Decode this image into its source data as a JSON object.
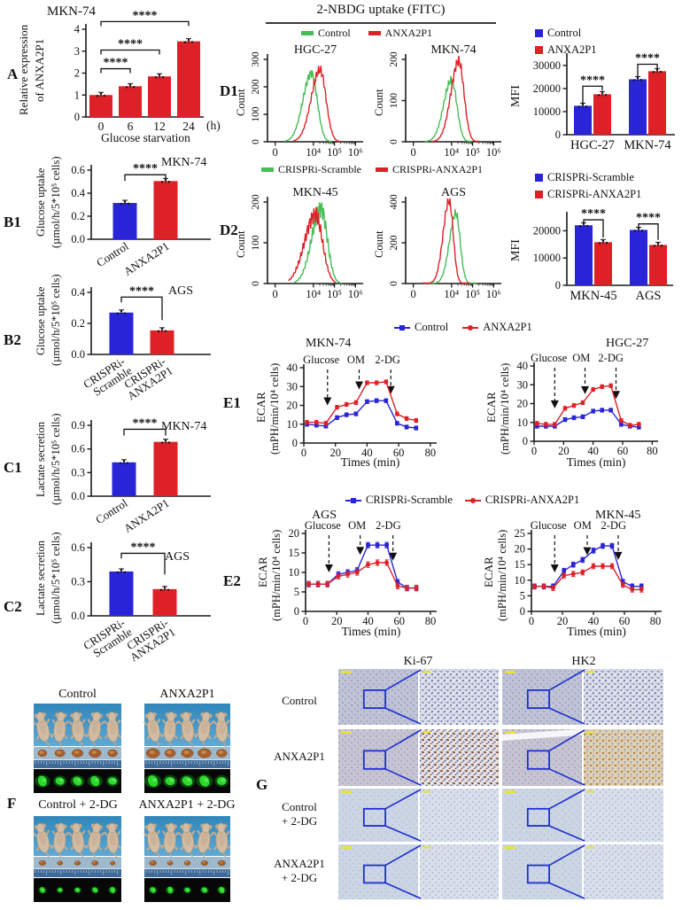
{
  "colors": {
    "red": "#dd2127",
    "blue": "#2a24d8",
    "green": "#46bd55",
    "axis": "#1a1a1a",
    "inset_blue": "#1d2fd0",
    "scalebar": "#e8e238",
    "mice_bg_top": "#2f86ba",
    "mice_bg_bottom": "#5fa9d4",
    "mouse_body": "#d2bca3",
    "tumor_bg": "#9db9cb",
    "ruler": "#3e6a98",
    "tumor": "#a95e2b",
    "tumor_hi": "#cd8a4e",
    "fluoro_bg": "#070707",
    "fluoro": "#2bd82b",
    "fluoro_glow": "#0f7a14"
  },
  "panel_labels": {
    "A": "A",
    "B1": "B1",
    "B2": "B2",
    "C1": "C1",
    "C2": "C2",
    "D1": "D1",
    "D2": "D2",
    "E1": "E1",
    "E2": "E2",
    "F": "F",
    "G": "G"
  },
  "d1_header": {
    "title": "2-NBDG uptake (FITC)"
  },
  "legends": {
    "d1": [
      {
        "label": "Control",
        "color": "green"
      },
      {
        "label": "ANXA2P1",
        "color": "red"
      }
    ],
    "d2": [
      {
        "label": "CRISPRi-Scramble",
        "color": "green"
      },
      {
        "label": "CRISPRi-ANXA2P1",
        "color": "red"
      }
    ],
    "mfi1": [
      {
        "label": "Control",
        "color": "blue"
      },
      {
        "label": "ANXA2P1",
        "color": "red"
      }
    ],
    "mfi2": [
      {
        "label": "CRISPRi-Scramble",
        "color": "blue"
      },
      {
        "label": "CRISPRi-ANXA2P1",
        "color": "red"
      }
    ],
    "e1": [
      {
        "label": "Control",
        "color": "blue"
      },
      {
        "label": "ANXA2P1",
        "color": "red"
      }
    ],
    "e2": [
      {
        "label": "CRISPRi-Scramble",
        "color": "blue"
      },
      {
        "label": "CRISPRi-ANXA2P1",
        "color": "red"
      }
    ]
  },
  "chart_data": [
    {
      "id": "A",
      "type": "bar",
      "title": "MKN-74",
      "ylabel": [
        "Relative expression",
        "of ANXA2P1"
      ],
      "xlabel": "Glucose starvation",
      "x_unit": "(h)",
      "categories": [
        "0",
        "6",
        "12",
        "24"
      ],
      "values": [
        1.0,
        1.4,
        1.85,
        3.45
      ],
      "errors": [
        0.05,
        0.09,
        0.1,
        0.08
      ],
      "bar_colors": [
        "red",
        "red",
        "red",
        "red"
      ],
      "ylim": [
        0,
        4
      ],
      "yticks": [
        0,
        1,
        2,
        3,
        4
      ],
      "ytick_labels": [
        "0",
        "1",
        "2",
        "3",
        "4"
      ],
      "sig": [
        {
          "from": 0,
          "to": 1,
          "label": "****",
          "y": 2.2
        },
        {
          "from": 0,
          "to": 2,
          "label": "****",
          "y": 3.05
        },
        {
          "from": 0,
          "to": 3,
          "label": "****",
          "y": 4.35
        }
      ]
    },
    {
      "id": "B1",
      "type": "bar",
      "title": "MKN-74",
      "ylabel": [
        "Glucose uptake",
        "(µmol/h/5*10⁵ cells)"
      ],
      "categories": [
        "Control",
        "ANXA2P1"
      ],
      "values": [
        0.315,
        0.505
      ],
      "errors": [
        0.008,
        0.012
      ],
      "bar_colors": [
        "blue",
        "red"
      ],
      "ylim": [
        0,
        0.6
      ],
      "yticks": [
        0,
        0.2,
        0.4,
        0.6
      ],
      "ytick_labels": [
        "0.0",
        "0.2",
        "0.4",
        "0.6"
      ],
      "xlabel_rot": -33,
      "sig": [
        {
          "from": 0,
          "to": 1,
          "label": "****",
          "y": 0.56
        }
      ]
    },
    {
      "id": "B2",
      "type": "bar",
      "title": "AGS",
      "ylabel": [
        "Glucose uptake",
        "(µmol/h/5*10⁵ cells)"
      ],
      "categories": [
        "CRISPRi-\nScramble",
        "CRISPRi-\nANXA2P1"
      ],
      "values": [
        0.27,
        0.155
      ],
      "errors": [
        0.006,
        0.006
      ],
      "bar_colors": [
        "blue",
        "red"
      ],
      "ylim": [
        0,
        0.4
      ],
      "yticks": [
        0,
        0.2,
        0.4
      ],
      "ytick_labels": [
        "0.0",
        "0.2",
        "0.4"
      ],
      "xlabel_rot": -33,
      "sig": [
        {
          "from": 0,
          "to": 1,
          "label": "****",
          "y": 0.37
        }
      ]
    },
    {
      "id": "C1",
      "type": "bar",
      "title": "MKN-74",
      "ylabel": [
        "Lactate secretion",
        "(µmol/h/5*10⁵ cells)"
      ],
      "categories": [
        "Control",
        "ANXA2P1"
      ],
      "values": [
        0.43,
        0.69
      ],
      "errors": [
        0.012,
        0.015
      ],
      "bar_colors": [
        "blue",
        "red"
      ],
      "ylim": [
        0,
        0.9
      ],
      "yticks": [
        0,
        0.3,
        0.6,
        0.9
      ],
      "ytick_labels": [
        "0.0",
        "0.3",
        "0.6",
        "0.9"
      ],
      "xlabel_rot": -33,
      "sig": [
        {
          "from": 0,
          "to": 1,
          "label": "****",
          "y": 0.85
        }
      ]
    },
    {
      "id": "C2",
      "type": "bar",
      "title": "AGS",
      "ylabel": [
        "Lactate secretion",
        "(µmol/h/5*10⁵ cells)"
      ],
      "categories": [
        "CRISPRi-\nScramble",
        "CRISPRi-\nANXA2P1"
      ],
      "values": [
        0.39,
        0.235
      ],
      "errors": [
        0.008,
        0.006
      ],
      "bar_colors": [
        "blue",
        "red"
      ],
      "ylim": [
        0,
        0.6
      ],
      "yticks": [
        0,
        0.3,
        0.6
      ],
      "ytick_labels": [
        "0.0",
        "0.3",
        "0.6"
      ],
      "xlabel_rot": -33,
      "sig": [
        {
          "from": 0,
          "to": 1,
          "label": "****",
          "y": 0.55
        }
      ]
    },
    {
      "id": "MFI1",
      "type": "grouped_bar",
      "ylabel": [
        "MFI"
      ],
      "categories": [
        "HGC-27",
        "MKN-74"
      ],
      "series": [
        {
          "name": "Control",
          "color": "blue",
          "values": [
            12500,
            24000
          ],
          "errors": [
            300,
            350
          ]
        },
        {
          "name": "ANXA2P1",
          "color": "red",
          "values": [
            17500,
            27500
          ],
          "errors": [
            350,
            300
          ]
        }
      ],
      "ylim": [
        0,
        33000
      ],
      "yticks": [
        0,
        10000,
        20000,
        30000
      ],
      "ytick_labels": [
        "0",
        "10000",
        "20000",
        "30000"
      ],
      "sig": [
        {
          "group": 0,
          "label": "****",
          "y": 21000
        },
        {
          "group": 1,
          "label": "****",
          "y": 30500
        }
      ]
    },
    {
      "id": "MFI2",
      "type": "grouped_bar",
      "ylabel": [
        "MFI"
      ],
      "categories": [
        "MKN-45",
        "AGS"
      ],
      "series": [
        {
          "name": "CRISPRi-Scramble",
          "color": "blue",
          "values": [
            22000,
            20300
          ],
          "errors": [
            350,
            350
          ]
        },
        {
          "name": "CRISPRi-ANXA2P1",
          "color": "red",
          "values": [
            15800,
            14800
          ],
          "errors": [
            300,
            300
          ]
        }
      ],
      "ylim": [
        0,
        25000
      ],
      "yticks": [
        0,
        10000,
        20000
      ],
      "ytick_labels": [
        "0",
        "10000",
        "20000"
      ],
      "sig": [
        {
          "group": 0,
          "label": "****",
          "y": 24000
        },
        {
          "group": 1,
          "label": "****",
          "y": 22500
        }
      ]
    },
    {
      "id": "H1",
      "type": "histogram",
      "title": "HGC-27",
      "ylabel": [
        "Count"
      ],
      "ylim": [
        0,
        300
      ],
      "yticks": [
        0,
        100,
        200,
        300
      ],
      "ytick_labels": [
        "0",
        "100",
        "200",
        "300"
      ],
      "xtick_labels": [
        "0",
        "10⁴",
        "10⁵",
        "10⁶"
      ],
      "curves": [
        {
          "name": "Control",
          "color": "green",
          "peak": 250,
          "center": 0.46,
          "sigma": 0.06
        },
        {
          "name": "ANXA2P1",
          "color": "red",
          "peak": 262,
          "center": 0.55,
          "sigma": 0.062
        }
      ]
    },
    {
      "id": "H2",
      "type": "histogram",
      "title": "MKN-74",
      "ylabel": [
        "Count"
      ],
      "ylim": [
        0,
        200
      ],
      "yticks": [
        0,
        100,
        200
      ],
      "ytick_labels": [
        "0",
        "100",
        "200"
      ],
      "xtick_labels": [
        "0",
        "10⁴",
        "10⁵",
        "10⁶"
      ],
      "curves": [
        {
          "name": "Control",
          "color": "green",
          "peak": 150,
          "center": 0.48,
          "sigma": 0.055
        },
        {
          "name": "ANXA2P1",
          "color": "red",
          "peak": 196,
          "center": 0.555,
          "sigma": 0.055
        }
      ]
    },
    {
      "id": "H3",
      "type": "histogram",
      "title": "MKN-45",
      "ylabel": [
        "Count"
      ],
      "ylim": [
        0,
        200
      ],
      "yticks": [
        0,
        100,
        200
      ],
      "ytick_labels": [
        "0",
        "100",
        "200"
      ],
      "xtick_labels": [
        "0",
        "10⁴",
        "10⁵",
        "10⁶"
      ],
      "curves": [
        {
          "name": "CRISPRi-Scramble",
          "color": "green",
          "peak": 185,
          "center": 0.56,
          "sigma": 0.065,
          "noise": 0.13
        },
        {
          "name": "CRISPRi-ANXA2P1",
          "color": "red",
          "peak": 170,
          "center": 0.5,
          "sigma": 0.075,
          "noise": 0.13
        }
      ]
    },
    {
      "id": "H4",
      "type": "histogram",
      "title": "AGS",
      "ylabel": [
        "Count"
      ],
      "ylim": [
        0,
        400
      ],
      "yticks": [
        0,
        200,
        400
      ],
      "ytick_labels": [
        "0",
        "200",
        "400"
      ],
      "xtick_labels": [
        "0",
        "10⁴",
        "10⁵",
        "10⁶"
      ],
      "curves": [
        {
          "name": "CRISPRi-Scramble",
          "color": "green",
          "peak": 345,
          "center": 0.525,
          "sigma": 0.045
        },
        {
          "name": "CRISPRi-ANXA2P1",
          "color": "red",
          "peak": 408,
          "center": 0.455,
          "sigma": 0.042
        }
      ]
    },
    {
      "id": "E1a",
      "type": "line",
      "title": "MKN-74",
      "ylabel": [
        "ECAR",
        "(mPH/min/10⁴ cells)"
      ],
      "xlabel": "Times (min)",
      "x": [
        2,
        8,
        14,
        21,
        27,
        33,
        40,
        46,
        52,
        59,
        65,
        71
      ],
      "xticks": [
        0,
        20,
        40,
        60,
        80
      ],
      "xtick_labels": [
        "0",
        "20",
        "40",
        "60",
        "80"
      ],
      "ylim": [
        0,
        40
      ],
      "yticks": [
        0,
        10,
        20,
        30,
        40
      ],
      "ytick_labels": [
        "0",
        "10",
        "20",
        "30",
        "40"
      ],
      "err": 1,
      "series": [
        {
          "name": "Control",
          "color": "blue",
          "values": [
            10,
            9.5,
            9,
            13.5,
            15,
            15.5,
            22,
            22.5,
            22.5,
            10.5,
            8.5,
            8
          ]
        },
        {
          "name": "ANXA2P1",
          "color": "red",
          "values": [
            11,
            11,
            10.5,
            19,
            20.5,
            21.5,
            32,
            32,
            32.5,
            15.5,
            13,
            12
          ]
        }
      ],
      "annotations": [
        {
          "label": "Glucose",
          "label_x": 11,
          "line_x": 15,
          "tip": 20
        },
        {
          "label": "OM",
          "label_x": 33,
          "line_x": 35,
          "tip": 28.5
        },
        {
          "label": "2-DG",
          "label_x": 53,
          "line_x": 55,
          "tip": 26
        }
      ]
    },
    {
      "id": "E1b",
      "type": "line",
      "title": "HGC-27",
      "ylabel": [
        "ECAR",
        "(mPH/min/10⁴ cells)"
      ],
      "xlabel": "Times (min)",
      "x": [
        2,
        8,
        14,
        21,
        27,
        33,
        40,
        46,
        52,
        59,
        65,
        71
      ],
      "xticks": [
        0,
        20,
        40,
        60,
        80
      ],
      "xtick_labels": [
        "0",
        "20",
        "40",
        "60",
        "80"
      ],
      "ylim": [
        0,
        40
      ],
      "yticks": [
        0,
        10,
        20,
        30,
        40
      ],
      "ytick_labels": [
        "0",
        "10",
        "20",
        "30",
        "40"
      ],
      "err": 1,
      "series": [
        {
          "name": "Control",
          "color": "blue",
          "values": [
            8,
            8,
            8,
            11.5,
            12.5,
            13,
            16,
            16.5,
            16.5,
            9,
            8,
            7.5
          ]
        },
        {
          "name": "ANXA2P1",
          "color": "red",
          "values": [
            9.5,
            9,
            9,
            17.5,
            19,
            20.5,
            27.5,
            29,
            29.5,
            11,
            8.5,
            9
          ]
        }
      ],
      "annotations": [
        {
          "label": "Glucose",
          "label_x": 10,
          "line_x": 14,
          "tip": 17.5
        },
        {
          "label": "OM",
          "label_x": 32,
          "line_x": 34.5,
          "tip": 25
        },
        {
          "label": "2-DG",
          "label_x": 52,
          "line_x": 55.5,
          "tip": 22.5
        }
      ]
    },
    {
      "id": "E2a",
      "type": "line",
      "title": "AGS",
      "ylabel": [
        "ECAR",
        "(mPH/min/10⁴ cells)"
      ],
      "xlabel": "Times (min)",
      "x": [
        2,
        8,
        14,
        21,
        27,
        33,
        40,
        46,
        52,
        59,
        65,
        71
      ],
      "xticks": [
        0,
        20,
        40,
        60,
        80
      ],
      "xtick_labels": [
        "0",
        "20",
        "40",
        "60",
        "80"
      ],
      "ylim": [
        0,
        20
      ],
      "yticks": [
        0,
        5,
        10,
        15,
        20
      ],
      "ytick_labels": [
        "0",
        "5",
        "10",
        "15",
        "20"
      ],
      "err": 0.7,
      "series": [
        {
          "name": "CRISPRi-Scramble",
          "color": "blue",
          "values": [
            7,
            7,
            7,
            9.5,
            10,
            10.5,
            17,
            17,
            17,
            7.5,
            6,
            6
          ]
        },
        {
          "name": "CRISPRi-ANXA2P1",
          "color": "red",
          "values": [
            7,
            7,
            7,
            9,
            9.5,
            10,
            12,
            12.5,
            12.5,
            6.5,
            6,
            6
          ]
        }
      ],
      "annotations": [
        {
          "label": "Glucose",
          "label_x": 11,
          "line_x": 15,
          "tip": 10
        },
        {
          "label": "OM",
          "label_x": 33,
          "line_x": 35,
          "tip": 14.5
        },
        {
          "label": "2-DG",
          "label_x": 53,
          "line_x": 56,
          "tip": 13
        }
      ]
    },
    {
      "id": "E2b",
      "type": "line",
      "title": "MKN-45",
      "ylabel": [
        "ECAR",
        "(mPH/min/10⁴ cells)"
      ],
      "xlabel": "Times (min)",
      "x": [
        2,
        8,
        14,
        21,
        27,
        33,
        40,
        46,
        52,
        59,
        65,
        71
      ],
      "xticks": [
        0,
        20,
        40,
        60,
        80
      ],
      "xtick_labels": [
        "0",
        "20",
        "40",
        "60",
        "80"
      ],
      "ylim": [
        0,
        25
      ],
      "yticks": [
        0,
        5,
        10,
        15,
        20,
        25
      ],
      "ytick_labels": [
        "0",
        "5",
        "10",
        "15",
        "20",
        "25"
      ],
      "err": 0.8,
      "series": [
        {
          "name": "CRISPRi-Scramble",
          "color": "blue",
          "values": [
            8,
            8,
            8,
            13,
            15,
            16.5,
            19.5,
            21,
            21,
            9.5,
            8,
            8
          ]
        },
        {
          "name": "CRISPRi-ANXA2P1",
          "color": "red",
          "values": [
            8,
            8,
            7.5,
            11.5,
            12,
            12.5,
            14.5,
            14.5,
            14.5,
            8.5,
            7,
            7
          ]
        }
      ],
      "annotations": [
        {
          "label": "Glucose",
          "label_x": 11,
          "line_x": 15,
          "tip": 12.5
        },
        {
          "label": "OM",
          "label_x": 33,
          "line_x": 36,
          "tip": 18
        },
        {
          "label": "2-DG",
          "label_x": 53,
          "line_x": 56,
          "tip": 16.5
        }
      ]
    }
  ],
  "panel_f": {
    "mice_per_group": 5,
    "rows": [
      {
        "groups": [
          {
            "title": "Control",
            "tumor_scale": 1.0
          },
          {
            "title": "ANXA2P1",
            "tumor_scale": 1.12
          }
        ]
      },
      {
        "groups": [
          {
            "title": "Control + 2-DG",
            "tumor_scale": 0.58
          },
          {
            "title": "ANXA2P1 + 2-DG",
            "tumor_scale": 0.62
          }
        ]
      }
    ]
  },
  "panel_g": {
    "columns": [
      "Ki-67",
      "HK2"
    ],
    "rows": [
      {
        "label": "Control",
        "label2": "",
        "stains": [
          "hib",
          "hib"
        ],
        "low": "lowblue"
      },
      {
        "label": "ANXA2P1",
        "label2": "",
        "stains": [
          "brown",
          "tan"
        ],
        "low": "lowlav",
        "streak": true
      },
      {
        "label": "Control",
        "label2": "+ 2-DG",
        "stains": [
          "pale",
          "pale"
        ],
        "low": "palelow"
      },
      {
        "label": "ANXA2P1",
        "label2": "+ 2-DG",
        "stains": [
          "pale",
          "pale"
        ],
        "low": "palelow"
      }
    ]
  }
}
